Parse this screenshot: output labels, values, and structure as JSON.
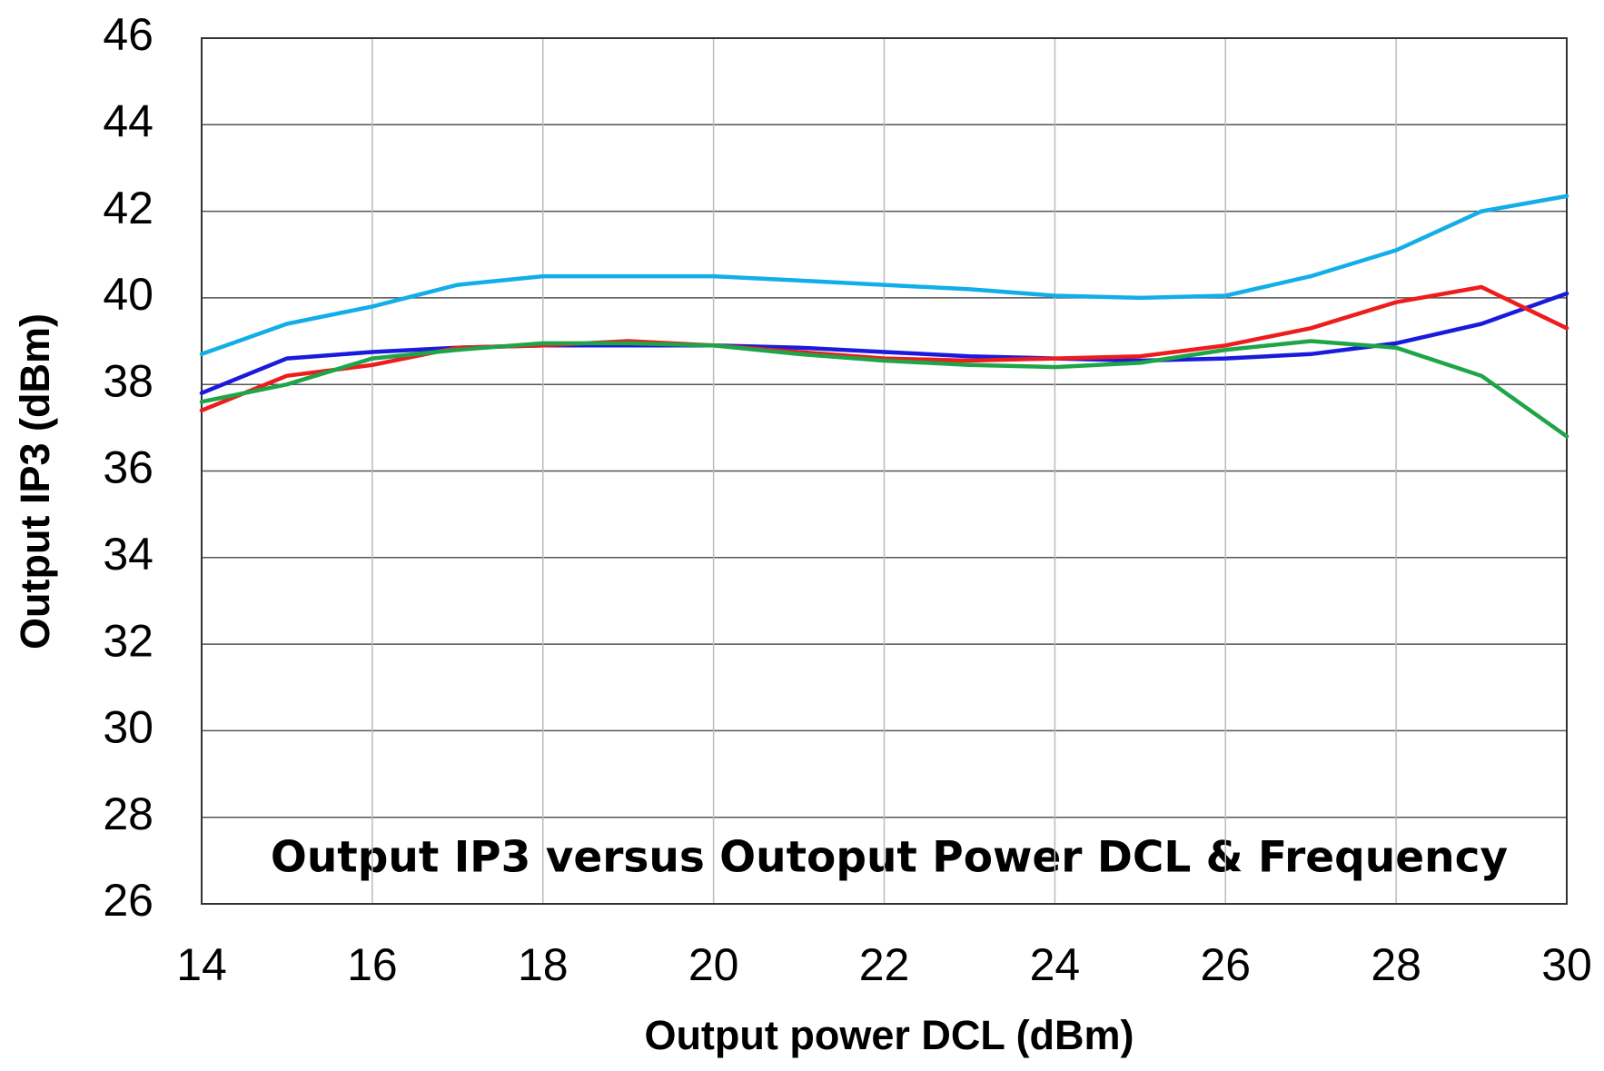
{
  "chart_data": {
    "type": "line",
    "title": "Output IP3 versus Outoput Power DCL & Frequency",
    "x_label": "Output power DCL (dBm)",
    "y_label": "Output  IP3 (dBm)",
    "x": [
      14,
      15,
      16,
      17,
      18,
      19,
      20,
      21,
      22,
      23,
      24,
      25,
      26,
      27,
      28,
      29,
      30
    ],
    "series": [
      {
        "color": "#12aee8",
        "values": [
          38.7,
          39.4,
          39.8,
          40.3,
          40.5,
          40.5,
          40.5,
          40.4,
          40.3,
          40.2,
          40.05,
          40.0,
          40.05,
          40.5,
          41.1,
          42.0,
          42.35
        ]
      },
      {
        "color": "#1a1adc",
        "values": [
          37.8,
          38.6,
          38.75,
          38.85,
          38.9,
          38.9,
          38.9,
          38.85,
          38.75,
          38.65,
          38.6,
          38.55,
          38.6,
          38.7,
          38.95,
          39.4,
          40.1
        ]
      },
      {
        "color": "#ee1c1c",
        "values": [
          37.4,
          38.2,
          38.45,
          38.85,
          38.9,
          39.0,
          38.9,
          38.75,
          38.6,
          38.55,
          38.6,
          38.65,
          38.9,
          39.3,
          39.9,
          40.25,
          39.3
        ]
      },
      {
        "color": "#1ea548",
        "values": [
          37.6,
          38.0,
          38.6,
          38.8,
          38.95,
          38.95,
          38.9,
          38.7,
          38.55,
          38.45,
          38.4,
          38.5,
          38.8,
          39.0,
          38.85,
          38.2,
          36.8
        ]
      }
    ],
    "xlim": [
      14,
      30
    ],
    "xticks": [
      14,
      16,
      18,
      20,
      22,
      24,
      26,
      28,
      30
    ],
    "ylim": [
      26,
      46
    ],
    "yticks": [
      26,
      28,
      30,
      32,
      34,
      36,
      38,
      40,
      42,
      44,
      46
    ],
    "grid": true
  }
}
